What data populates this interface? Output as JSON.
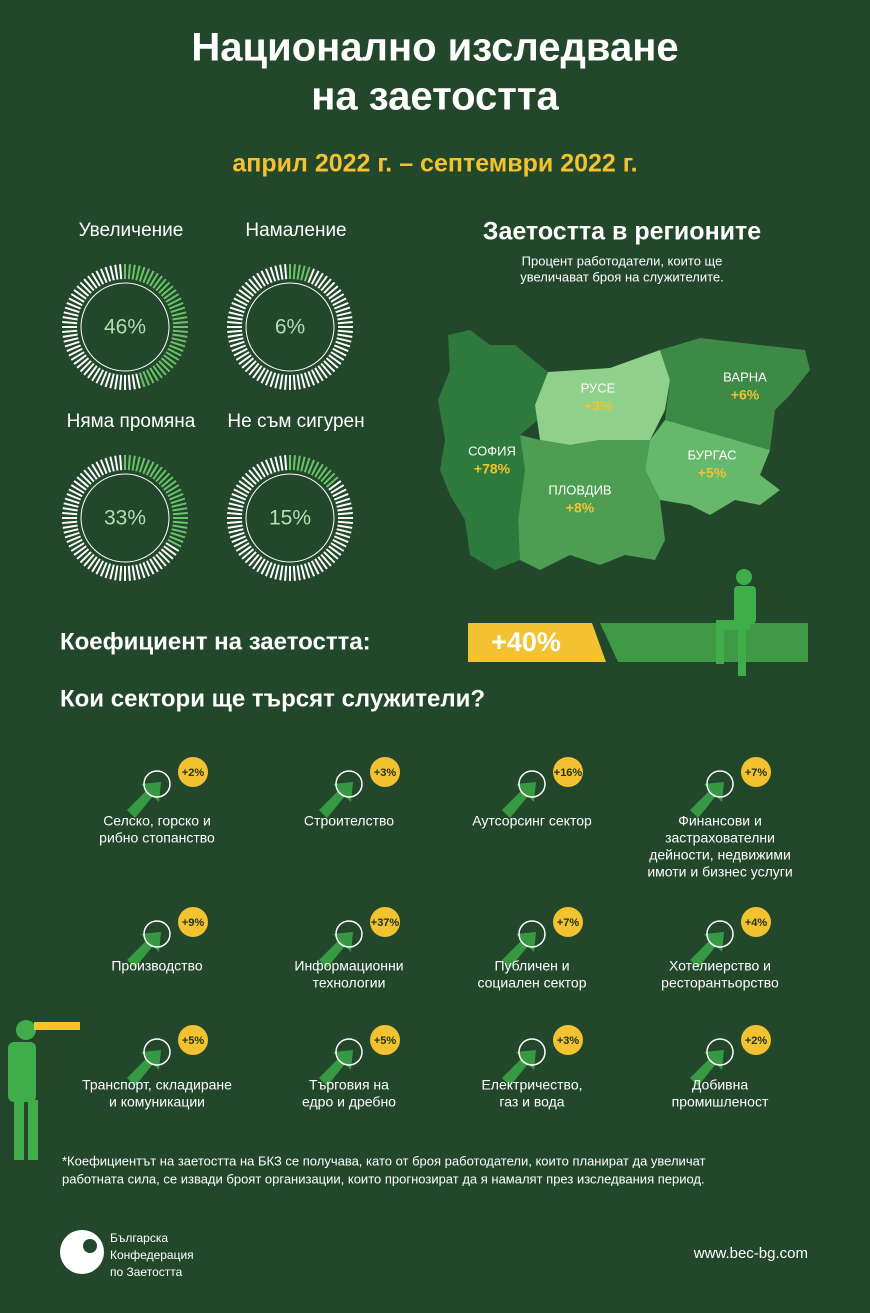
{
  "header": {
    "title_lines": [
      "Национално изследване",
      "на заетостта"
    ],
    "period": "април 2022 г. – септември 2022 г."
  },
  "donuts": [
    {
      "label": "Увеличение",
      "value": "46%"
    },
    {
      "label": "Намаление",
      "value": "6%"
    },
    {
      "label": "Няма промяна",
      "value": "33%"
    },
    {
      "label": "Не съм сигурен",
      "value": "15%"
    }
  ],
  "regions": {
    "title": "Заетостта в регионите",
    "subtitle_lines": [
      "Процент работодатели, които ще",
      "увеличават броя на служителите."
    ],
    "items": [
      {
        "name": "СОФИЯ",
        "value": "+78%"
      },
      {
        "name": "РУСЕ",
        "value": "+3%"
      },
      {
        "name": "ВАРНА",
        "value": "+6%"
      },
      {
        "name": "БУРГАС",
        "value": "+5%"
      },
      {
        "name": "ПЛОВДИВ",
        "value": "+8%"
      }
    ]
  },
  "coefficient": {
    "label": "Коефициент на заетостта:",
    "value": "+40%"
  },
  "sectors": {
    "title": "Кои сектори ще търсят служители?",
    "items": [
      {
        "lines": [
          "Селско, горско и",
          "рибно стопанство"
        ],
        "value": "+2%"
      },
      {
        "lines": [
          "Строителство"
        ],
        "value": "+3%"
      },
      {
        "lines": [
          "Аутсорсинг сектор"
        ],
        "value": "+16%"
      },
      {
        "lines": [
          "Финансови и",
          "застрахователни",
          "дейности, недвижими",
          "имоти и бизнес услуги"
        ],
        "value": "+7%"
      },
      {
        "lines": [
          "Производство"
        ],
        "value": "+9%"
      },
      {
        "lines": [
          "Информационни",
          "технологии"
        ],
        "value": "+37%"
      },
      {
        "lines": [
          "Публичен и",
          "социален сектор"
        ],
        "value": "+7%"
      },
      {
        "lines": [
          "Хотелиерство и",
          "ресторантьорство"
        ],
        "value": "+4%"
      },
      {
        "lines": [
          "Транспорт, складиране",
          "и комуникации"
        ],
        "value": "+5%"
      },
      {
        "lines": [
          "Търговия на",
          "едро и дребно"
        ],
        "value": "+5%"
      },
      {
        "lines": [
          "Електричество,",
          "газ и вода"
        ],
        "value": "+3%"
      },
      {
        "lines": [
          "Добивна",
          "промишленост"
        ],
        "value": "+2%"
      }
    ]
  },
  "footnote_lines": [
    "*Коефициентът на заетостта на БКЗ се получава, като от броя работодатели, които планират да увеличат",
    "работната сила, се извади броят организации, които прогнозират да я намалят през изследвания период."
  ],
  "footer": {
    "logo_lines": [
      "Българска",
      "Конфедерация",
      "по Заетостта"
    ],
    "website": "www.bec-bg.com"
  }
}
